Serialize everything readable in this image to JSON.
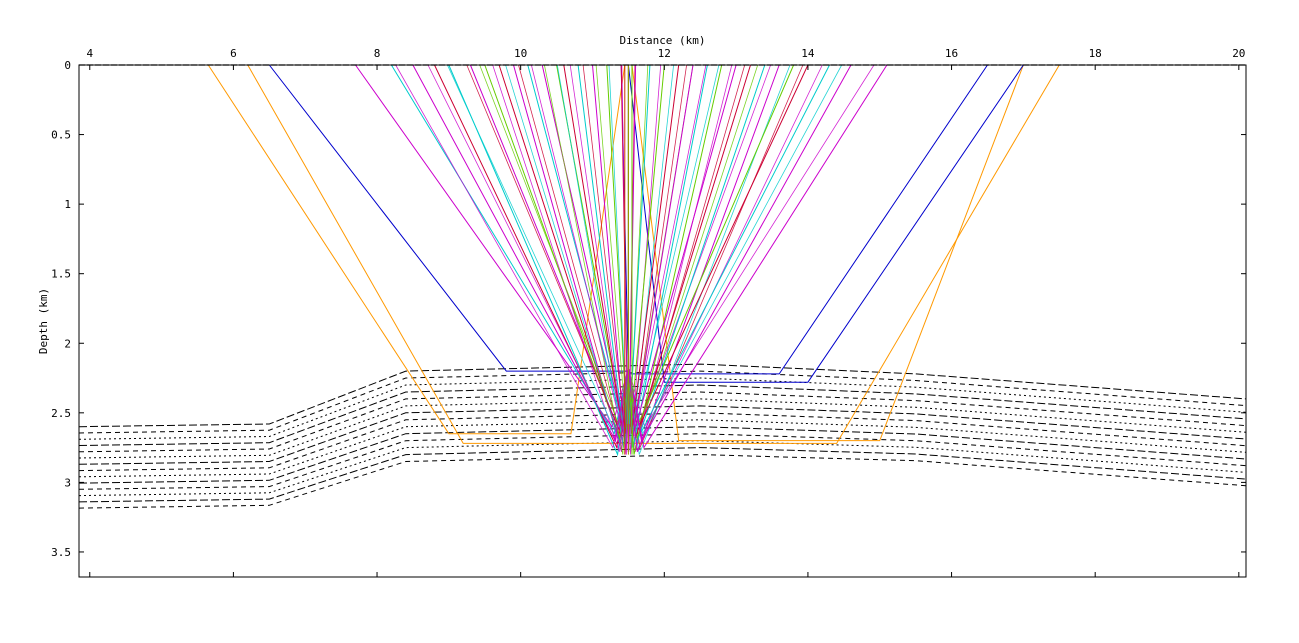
{
  "chart_data": {
    "type": "line",
    "title": "",
    "xlabel": "Distance (km)",
    "ylabel": "Depth (km)",
    "xlim": [
      3.85,
      20.1
    ],
    "ylim": [
      0,
      3.68
    ],
    "y_inverted": true,
    "x_axis_position": "top",
    "grid": false,
    "xticks": [
      4,
      6,
      8,
      10,
      12,
      14,
      16,
      18,
      20
    ],
    "yticks": [
      0,
      0.5,
      1,
      1.5,
      2,
      2.5,
      3,
      3.5
    ],
    "ytick_labels": [
      "0",
      "0.5",
      "1",
      "1.5",
      "2",
      "2.5",
      "3",
      "3.5"
    ],
    "surface_line": {
      "depth": 0,
      "style": "dashed",
      "color": "#000000"
    },
    "reflector_horizons": {
      "style": "dashed",
      "color": "#000000",
      "count": 14,
      "left_x": [
        3.85,
        6.5
      ],
      "left_depth_top": 2.6,
      "left_spacing": 0.045,
      "ramp_x": [
        6.5,
        8.4
      ],
      "mid_x": [
        8.4,
        12.5
      ],
      "mid_depth_top": 2.15,
      "mid_spacing": 0.05,
      "right_x": [
        12.5,
        20.1
      ],
      "right_depth_top": 2.2,
      "right_spacing": 0.048
    },
    "ray_paths": [
      {
        "color": "#ff9900",
        "x_surface_left": 5.65,
        "x_bottom_left": 9.0,
        "x_bottom_right": 10.7,
        "x_surface_right": 11.45,
        "bottom_depth": 2.65
      },
      {
        "color": "#ff9900",
        "x_surface_left": 6.2,
        "x_bottom_left": 9.2,
        "x_bottom_right": 14.4,
        "x_surface_right": 17.5,
        "bottom_depth": 2.72
      },
      {
        "color": "#ff9900",
        "x_surface_left": 11.55,
        "x_bottom_left": 12.2,
        "x_bottom_right": 15.0,
        "x_surface_right": 17.0,
        "bottom_depth": 2.7
      },
      {
        "color": "#0000cc",
        "x_surface_left": 6.5,
        "x_bottom_left": 9.8,
        "x_bottom_right": 11.5,
        "x_surface_right": 11.5,
        "bottom_depth": 2.2
      },
      {
        "color": "#0000cc",
        "x_surface_left": 11.4,
        "x_bottom_left": 11.5,
        "x_bottom_right": 13.6,
        "x_surface_right": 16.5,
        "bottom_depth": 2.22
      },
      {
        "color": "#0000cc",
        "x_surface_left": 11.5,
        "x_bottom_left": 12.0,
        "x_bottom_right": 14.0,
        "x_surface_right": 17.0,
        "bottom_depth": 2.28
      }
    ],
    "fan_rays": {
      "source_x": 11.5,
      "source_depth": 2.18,
      "surface_x": [
        7.7,
        8.2,
        8.5,
        8.8,
        9.0,
        9.3,
        9.5,
        9.7,
        9.9,
        10.1,
        10.3,
        10.5,
        10.6,
        10.8,
        11.0,
        11.2,
        11.4,
        11.5,
        11.6,
        11.8,
        12.0,
        12.2,
        12.4,
        12.6,
        12.8,
        13.0,
        13.2,
        13.4,
        13.6,
        13.8,
        14.0,
        14.3,
        14.6,
        15.1
      ],
      "colors": [
        "#cc00cc",
        "#00cccc",
        "#cc00cc",
        "#cc0033",
        "#00cccc",
        "#cc00cc",
        "#66cc00",
        "#cc0033",
        "#cc00cc",
        "#00cccc",
        "#cc00cc",
        "#66cc00",
        "#cc0033",
        "#00cccc",
        "#cc00cc",
        "#66cc00",
        "#cc0033",
        "#999900",
        "#cc00cc",
        "#00cccc",
        "#66cc00",
        "#cc0033",
        "#cc00cc",
        "#00cccc",
        "#66cc00",
        "#cc00cc",
        "#cc0033",
        "#00cccc",
        "#cc00cc",
        "#66cc00",
        "#cc0033",
        "#00cccc",
        "#cc00cc",
        "#cc00cc"
      ],
      "bottom_depths": [
        2.6,
        2.65,
        2.7,
        2.75,
        2.8,
        2.62,
        2.68,
        2.72,
        2.78,
        2.58
      ]
    }
  }
}
